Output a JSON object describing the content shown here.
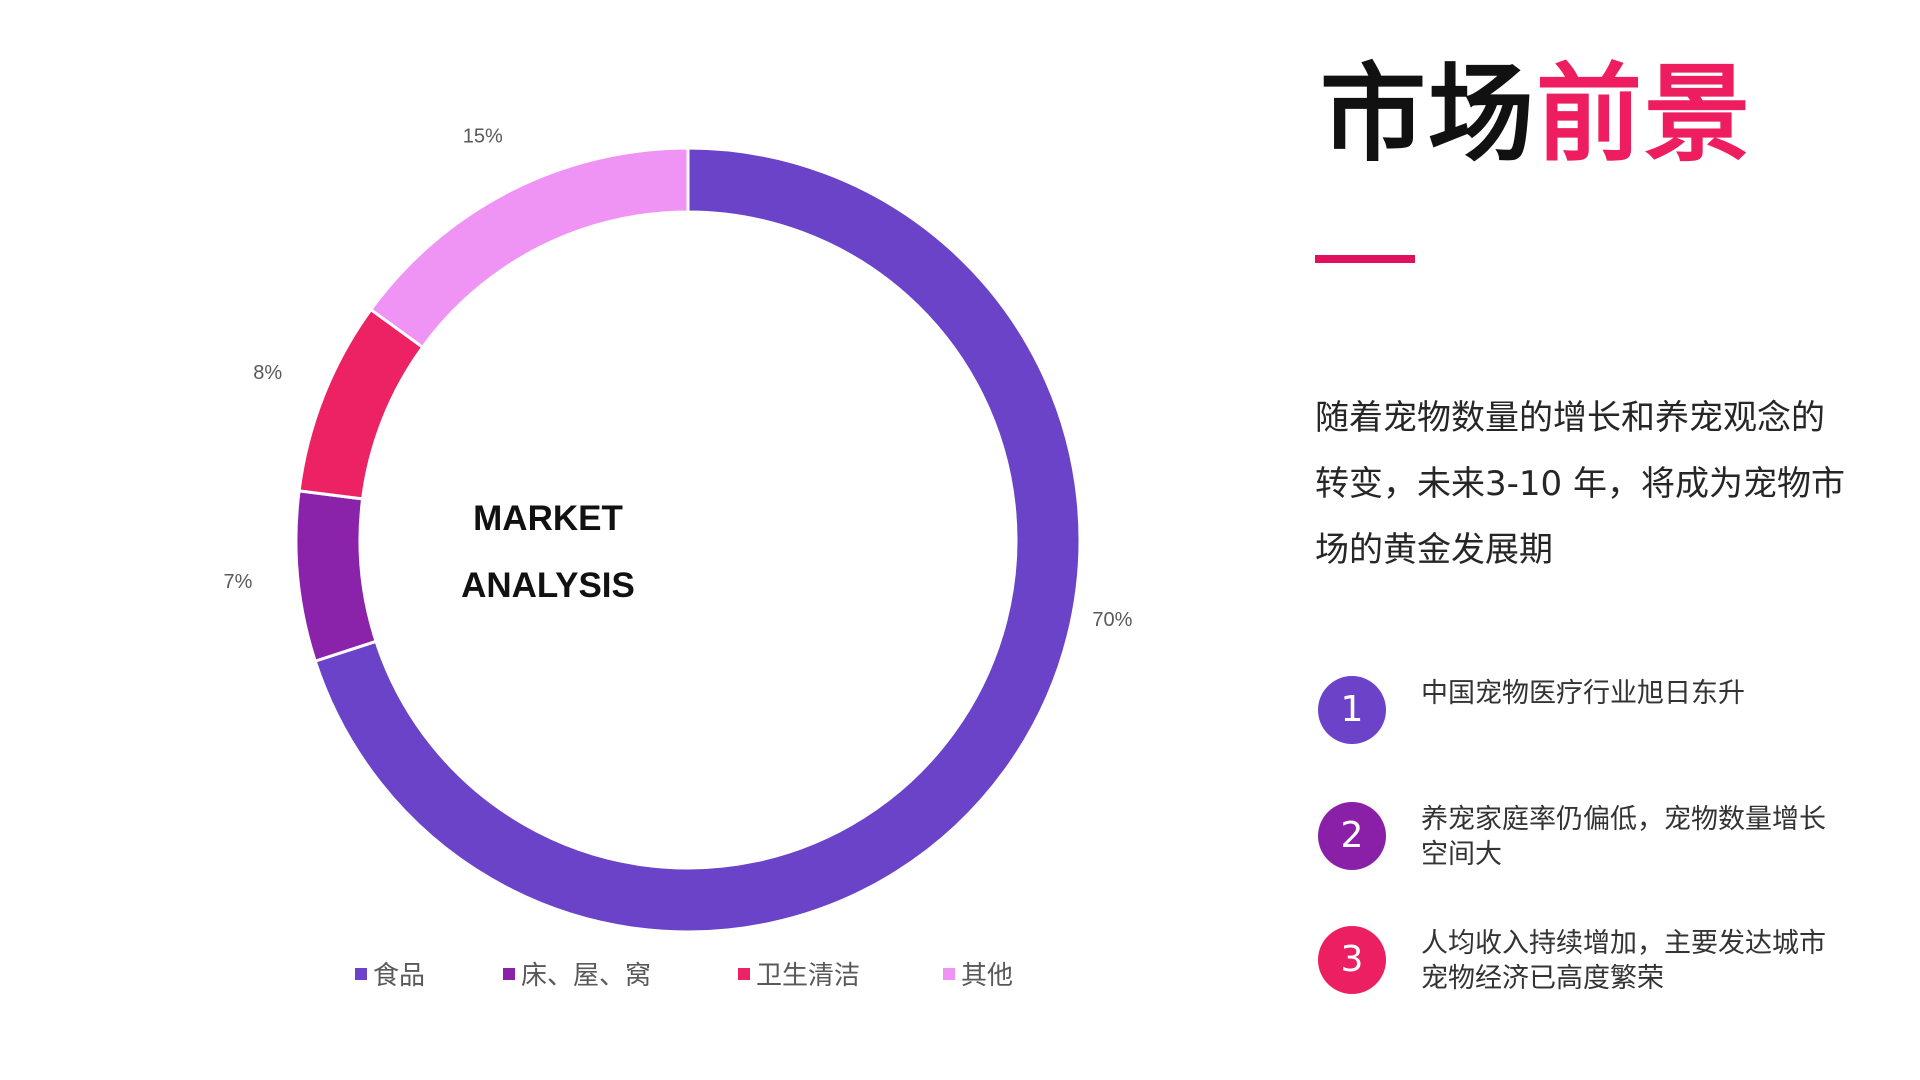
{
  "title": {
    "part1": "市场",
    "part2": "前景"
  },
  "description": "随着宠物数量的增长和养宠观念的转变，未来3-10 年，将成为宠物市场的黄金发展期",
  "points": [
    {
      "number": "1",
      "text": "中国宠物医疗行业旭日东升"
    },
    {
      "number": "2",
      "text": "养宠家庭率仍偏低，宠物数量增长空间大"
    },
    {
      "number": "3",
      "text": "人均收入持续增加，主要发达城市宠物经济已高度繁荣"
    }
  ],
  "colors": {
    "accent": "#e0105e",
    "point1": "#6b42c8",
    "point2": "#8a20a8",
    "point3": "#ec1f63"
  },
  "chart_data": {
    "type": "pie",
    "variant": "doughnut",
    "center_label": [
      "MARKET",
      "ANALYSIS"
    ],
    "categories": [
      "食品",
      "床、屋、窝",
      "卫生清洁",
      "其他"
    ],
    "values": [
      70,
      7,
      8,
      15
    ],
    "data_labels": [
      "70%",
      "7%",
      "8%",
      "15%"
    ],
    "colors": [
      "#6a43c9",
      "#8a22aa",
      "#ec2264",
      "#ef93f5"
    ],
    "legend_position": "bottom",
    "title": "",
    "xlabel": "",
    "ylabel": ""
  }
}
